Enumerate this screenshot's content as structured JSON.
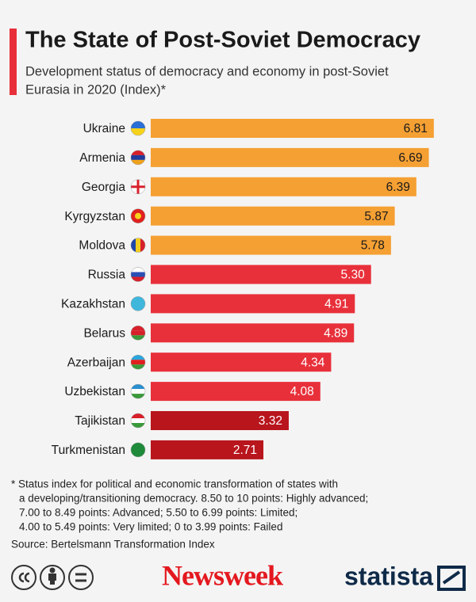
{
  "chart_data": {
    "type": "bar",
    "orientation": "horizontal",
    "title": "The State of Post-Soviet Democracy",
    "subtitle": [
      "Development status of democracy and economy in post-Soviet",
      "Eurasia in 2020 (Index)*"
    ],
    "categories": [
      "Ukraine",
      "Armenia",
      "Georgia",
      "Kyrgyzstan",
      "Moldova",
      "Russia",
      "Kazakhstan",
      "Belarus",
      "Azerbaijan",
      "Uzbekistan",
      "Tajikistan",
      "Turkmenistan"
    ],
    "values": [
      6.81,
      6.69,
      6.39,
      5.87,
      5.78,
      5.3,
      4.91,
      4.89,
      4.34,
      4.08,
      3.32,
      2.71
    ],
    "value_labels": [
      "6.81",
      "6.69",
      "6.39",
      "5.87",
      "5.78",
      "5.30",
      "4.91",
      "4.89",
      "4.34",
      "4.08",
      "3.32",
      "2.71"
    ],
    "colors": [
      "#f5a033",
      "#f5a033",
      "#f5a033",
      "#f5a033",
      "#f5a033",
      "#e8303a",
      "#e8303a",
      "#e8303a",
      "#e8303a",
      "#e8303a",
      "#b8151d",
      "#b8151d"
    ],
    "footnote": [
      "* Status index for political and economic transformation of states with",
      "a developing/transitioning democracy. 8.50 to 10 points: Highly advanced;",
      "7.00 to 8.49 points: Advanced; 5.50 to 6.99 points: Limited;",
      "4.00 to 5.49 points: Very limited; 0 to 3.99 points: Failed"
    ],
    "source": "Source: Bertelsmann Transformation Index"
  },
  "footer": {
    "brands": [
      "Newsweek",
      "statista"
    ]
  }
}
